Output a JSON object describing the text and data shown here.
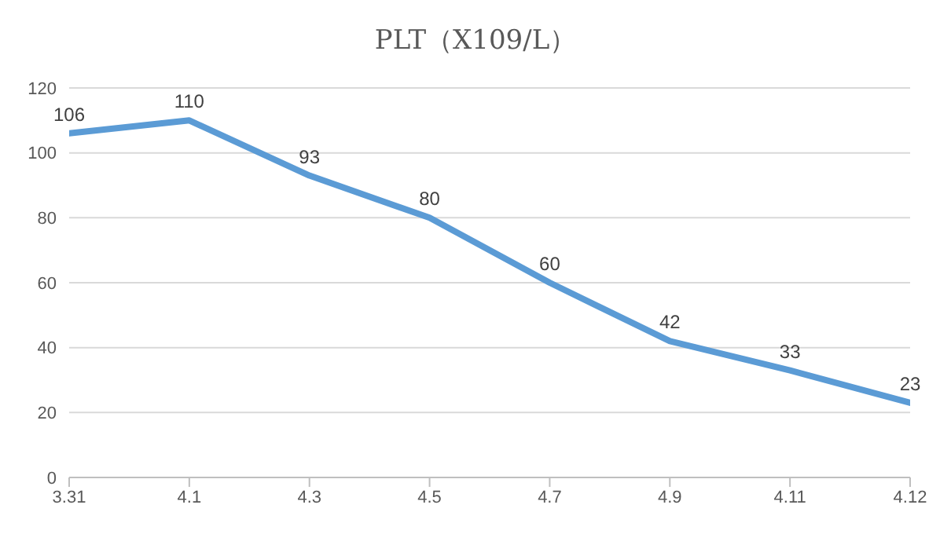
{
  "chart_data": {
    "type": "line",
    "title": "PLT（X109/L）",
    "categories": [
      "3.31",
      "4.1",
      "4.3",
      "4.5",
      "4.7",
      "4.9",
      "4.11",
      "4.12"
    ],
    "series": [
      {
        "color": "#5b9bd5",
        "values": [
          106,
          110,
          93,
          80,
          60,
          42,
          33,
          23
        ]
      }
    ],
    "ylim": [
      0,
      120
    ],
    "yticks": [
      0,
      20,
      40,
      60,
      80,
      100,
      120
    ],
    "grid": "y",
    "data_labels": true,
    "marker": "none",
    "line_style": "solid"
  }
}
